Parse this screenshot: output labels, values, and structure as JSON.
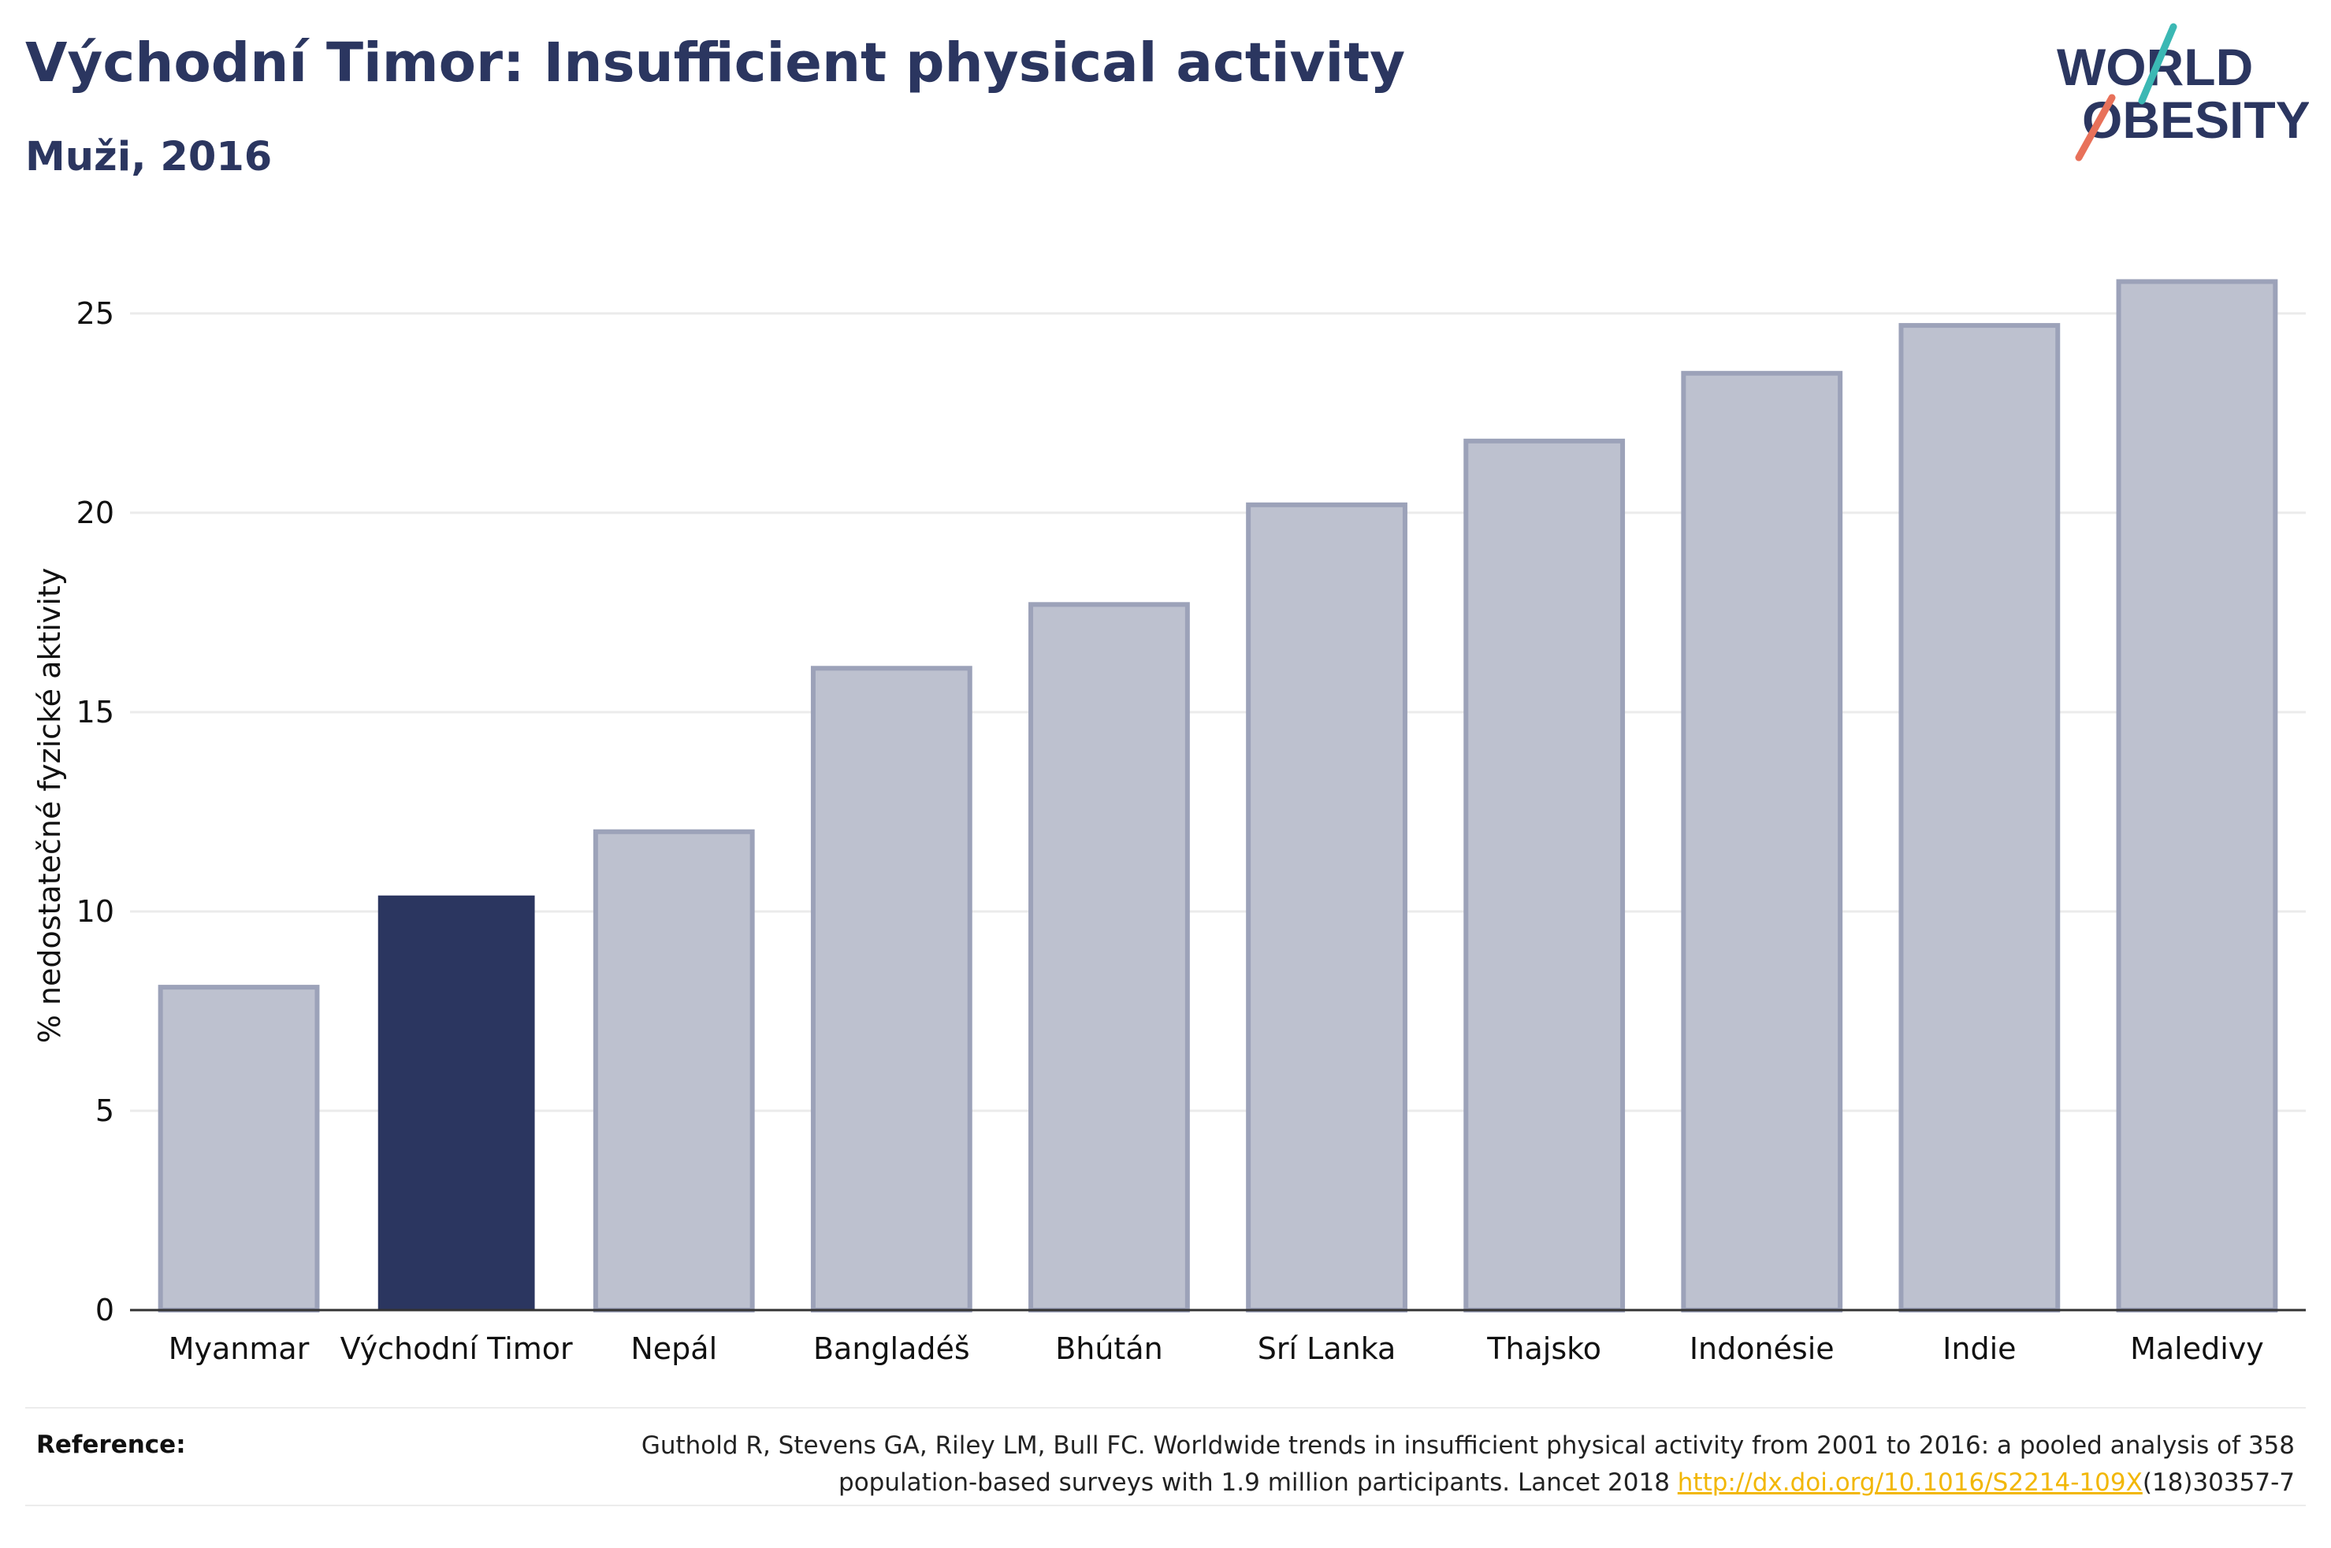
{
  "header": {
    "title": "Východní Timor: Insufficient physical activity",
    "subtitle": "Muži, 2016"
  },
  "logo": {
    "line1": "WORLD",
    "line2": "OBESITY"
  },
  "chart_data": {
    "type": "bar",
    "title": "Východní Timor: Insufficient physical activity",
    "subtitle": "Muži, 2016",
    "ylabel": "% nedostatečné fyzické aktivity",
    "xlabel": "",
    "ylim": [
      0,
      26.5
    ],
    "yticks": [
      0,
      5,
      10,
      15,
      20,
      25
    ],
    "grid": true,
    "highlight": "Východní Timor",
    "categories": [
      "Myanmar",
      "Východní Timor",
      "Nepál",
      "Bangladéš",
      "Bhútán",
      "Srí Lanka",
      "Thajsko",
      "Indonésie",
      "Indie",
      "Maledivy"
    ],
    "values": [
      8.1,
      10.4,
      12.0,
      16.1,
      17.7,
      20.2,
      21.8,
      23.5,
      24.7,
      25.8
    ],
    "colors": {
      "highlight": "#2b3660",
      "other_fill": "#bdc1cf",
      "other_stroke": "#9ca2b9",
      "grid": "#ebebeb",
      "axis": "#333333"
    }
  },
  "reference": {
    "label": "Reference:",
    "text": "Guthold R, Stevens GA, Riley LM, Bull FC. Worldwide trends in insufficient physical activity from 2001 to 2016: a pooled analysis of 358 population-based surveys with 1.9 million participants. Lancet 2018 ",
    "link": "http://dx.doi.org/10.1016/S2214-109X",
    "suffix": "(18)30357-7"
  }
}
